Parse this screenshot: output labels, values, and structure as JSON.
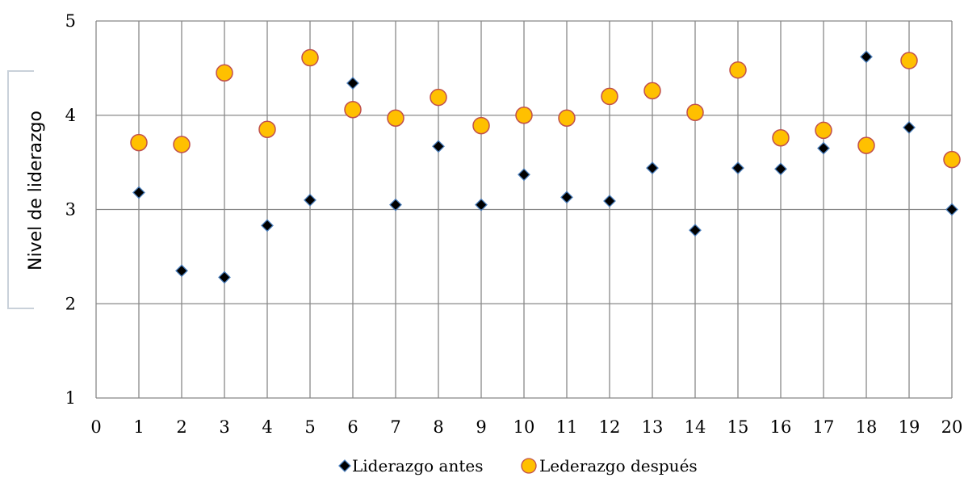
{
  "chart_data": {
    "type": "scatter",
    "title": "",
    "xlabel": "",
    "ylabel": "Nivel de liderazgo",
    "xlim": [
      0,
      20
    ],
    "ylim": [
      1,
      5
    ],
    "x_ticks": [
      0,
      1,
      2,
      3,
      4,
      5,
      6,
      7,
      8,
      9,
      10,
      11,
      12,
      13,
      14,
      15,
      16,
      17,
      18,
      19,
      20
    ],
    "y_ticks": [
      1,
      2,
      3,
      4,
      5
    ],
    "grid": "vertical and horizontal at ticks",
    "legend_position": "bottom",
    "series": [
      {
        "name": "Liderazgo antes",
        "marker": "diamond",
        "color": "#000000",
        "edge_color": "#4a7ebb",
        "x": [
          1,
          2,
          3,
          4,
          5,
          6,
          7,
          8,
          9,
          10,
          11,
          12,
          13,
          14,
          15,
          16,
          17,
          18,
          19,
          20
        ],
        "y": [
          3.18,
          2.35,
          2.28,
          2.83,
          3.1,
          4.34,
          3.05,
          3.67,
          3.05,
          3.37,
          3.13,
          3.09,
          3.44,
          2.78,
          3.44,
          3.43,
          3.65,
          4.62,
          3.87,
          3.0
        ]
      },
      {
        "name": "Lederazgo después",
        "marker": "circle",
        "color": "#ffc000",
        "edge_color": "#c0504d",
        "x": [
          1,
          2,
          3,
          4,
          5,
          6,
          7,
          8,
          9,
          10,
          11,
          12,
          13,
          14,
          15,
          16,
          17,
          18,
          19,
          20
        ],
        "y": [
          3.71,
          3.69,
          4.45,
          3.85,
          4.61,
          4.06,
          3.97,
          4.19,
          3.89,
          4.0,
          3.97,
          4.2,
          4.26,
          4.03,
          4.48,
          3.76,
          3.84,
          3.68,
          4.58,
          3.53
        ]
      }
    ]
  }
}
